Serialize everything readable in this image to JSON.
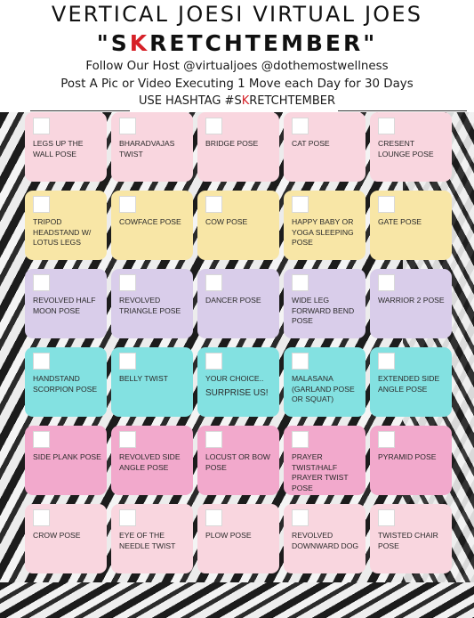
{
  "header": {
    "title": "VERTICAL JOESI VIRTUAL JOES",
    "subtitle_open": "\"S",
    "subtitle_red": "K",
    "subtitle_close": "RETCHTEMBER\"",
    "line1": "Follow Our Host @virtualjoes @dothemostwellness",
    "line2": "Post A Pic or Video Executing 1 Move each Day for 30 Days",
    "hashtag_prefix": "USE HASHTAG #S",
    "hashtag_red": "K",
    "hashtag_suffix": "RETCHTEMBER"
  },
  "colors": {
    "row1": "#f9d6df",
    "row2": "#f8e6a6",
    "row3": "#d9cdea",
    "row4": "#83e1e1",
    "row5": "#f2a9cc",
    "row6": "#f9d6df",
    "accent_red": "#d62128"
  },
  "poses": [
    [
      "LEGS UP THE WALL POSE",
      "BHARADVAJAS TWIST",
      "BRIDGE POSE",
      "CAT POSE",
      "CRESENT LOUNGE POSE"
    ],
    [
      "TRIPOD HEADSTAND W/ LOTUS LEGS",
      "COWFACE POSE",
      "COW POSE",
      "HAPPY BABY or YOGA SLEEPING POSE",
      "GATE POSE"
    ],
    [
      "REVOLVED HALF MOON POSE",
      "REVOLVED TRIANGLE POSE",
      "DANCER POSE",
      "WIDE LEG FORWARD BEND POSE",
      "WARRIOR 2 POSE"
    ],
    [
      "HANDSTAND SCORPION POSE",
      "BELLY TWIST",
      "YOUR CHOICE..",
      "MALASANA (GARLAND POSE OR SQUAT)",
      "EXTENDED SIDE ANGLE POSE"
    ],
    [
      "SIDE PLANK POSE",
      "REVOLVED SIDE ANGLE POSE",
      "LOCUST or BOW POSE",
      "PRAYER TWIST/HALF PRAYER TWIST POSE",
      "PYRAMID POSE"
    ],
    [
      "CROW POSE",
      "EYE OF THE NEEDLE TWIST",
      "PLOW POSE",
      "REVOLVED DOWNWARD DOG",
      "TWISTED CHAIR POSE"
    ]
  ],
  "surprise": "SURPRISE US!"
}
